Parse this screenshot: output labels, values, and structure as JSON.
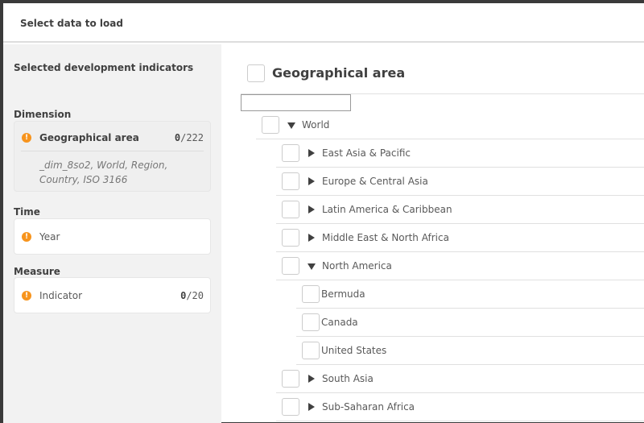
{
  "header": {
    "title": "Select data to load"
  },
  "left": {
    "selected_title": "Selected development indicators",
    "dimension": {
      "label": "Dimension",
      "name": "Geographical area",
      "selected": "0",
      "total": "/222",
      "fields": "_dim_8so2, World, Region, Country, ISO 3166"
    },
    "time": {
      "label": "Time",
      "name": "Year"
    },
    "measure": {
      "label": "Measure",
      "name": "Indicator",
      "selected": "0",
      "total": "/20"
    }
  },
  "right": {
    "title": "Geographical area",
    "search_value": "",
    "tree": [
      {
        "label": "World",
        "level": 0,
        "state": "expanded"
      },
      {
        "label": "East Asia & Pacific",
        "level": 1,
        "state": "collapsed"
      },
      {
        "label": "Europe & Central Asia",
        "level": 1,
        "state": "collapsed"
      },
      {
        "label": "Latin America & Caribbean",
        "level": 1,
        "state": "collapsed"
      },
      {
        "label": "Middle East & North Africa",
        "level": 1,
        "state": "collapsed"
      },
      {
        "label": "North America",
        "level": 1,
        "state": "expanded"
      },
      {
        "label": "Bermuda",
        "level": 2,
        "state": "leaf"
      },
      {
        "label": "Canada",
        "level": 2,
        "state": "leaf"
      },
      {
        "label": "United States",
        "level": 2,
        "state": "leaf"
      },
      {
        "label": "South Asia",
        "level": 1,
        "state": "collapsed"
      },
      {
        "label": "Sub-Saharan Africa",
        "level": 1,
        "state": "collapsed"
      }
    ]
  },
  "colors": {
    "warning": "#f7941d",
    "panel": "#f2f2f2"
  }
}
